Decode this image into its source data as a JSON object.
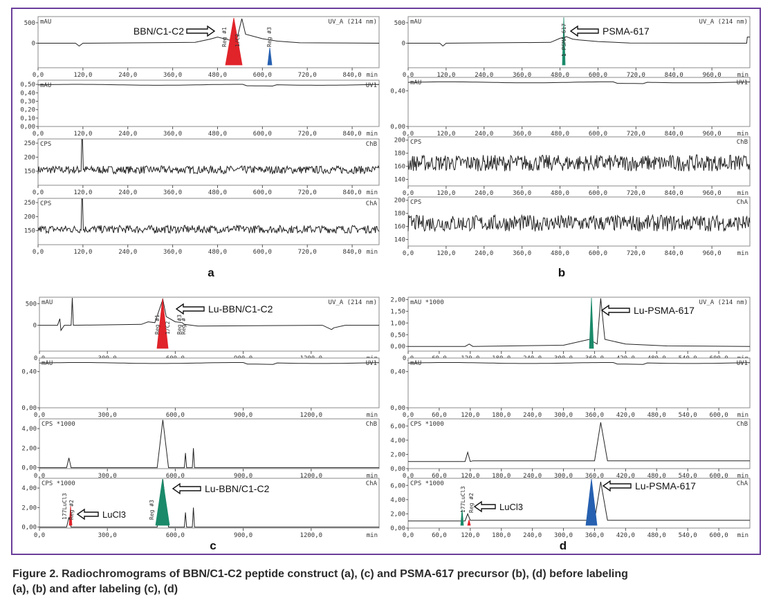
{
  "caption": {
    "line1": "Figure 2. Radiochromograms of BBN/C1-C2 peptide construct (a), (c) and PSMA-617 precursor (b), (d) before labeling",
    "line2": "(a), (b) and after labeling (c), (d)"
  },
  "colors": {
    "frame": "#6a3d9a",
    "trace": "#222222",
    "red_peak": "#e0242a",
    "blue_peak": "#2660b0",
    "green_peak": "#1a8a6a"
  },
  "chart_data": [
    {
      "panel": "a",
      "type": "line",
      "xlim": [
        0,
        912
      ],
      "xticks": [
        "0,0",
        "120,0",
        "240,0",
        "360,0",
        "480,0",
        "600,0",
        "720,0",
        "840,0"
      ],
      "xunit": "min",
      "subplots": [
        {
          "ylabel": "mAU",
          "right_label": "UV_A (214 nm)",
          "ylim": [
            -600,
            650
          ],
          "yticks": [
            "500",
            "0"
          ],
          "trace_points": [
            [
              0,
              0
            ],
            [
              100,
              0
            ],
            [
              110,
              -70
            ],
            [
              120,
              0
            ],
            [
              420,
              20
            ],
            [
              460,
              100
            ],
            [
              480,
              150
            ],
            [
              510,
              80
            ],
            [
              530,
              30
            ],
            [
              545,
              600
            ],
            [
              555,
              220
            ],
            [
              600,
              110
            ],
            [
              640,
              50
            ],
            [
              700,
              10
            ],
            [
              912,
              0
            ]
          ],
          "annotations": [
            "BBN/C1-C2",
            "Reg #1",
            "1/C2",
            "Reg #3"
          ]
        },
        {
          "ylabel": "mAU",
          "right_label": "UV1",
          "ylim": [
            0,
            0.55
          ],
          "yticks": [
            "0,50",
            "0,40",
            "0,30",
            "0,20",
            "0,10",
            "0,00"
          ]
        },
        {
          "ylabel": "CPS",
          "right_label": "ChB",
          "ylim": [
            100,
            265
          ],
          "yticks": [
            "250",
            "200",
            "150"
          ],
          "baseline": 155,
          "spike_at": 117,
          "spike_value": 265
        },
        {
          "ylabel": "CPS",
          "right_label": "ChA",
          "ylim": [
            100,
            265
          ],
          "yticks": [
            "250",
            "200",
            "150"
          ],
          "baseline": 155,
          "spike_at": 117,
          "spike_value": 265
        }
      ]
    },
    {
      "panel": "b",
      "type": "line",
      "xlim": [
        0,
        1080
      ],
      "xticks": [
        "0,0",
        "120,0",
        "240,0",
        "360,0",
        "480,0",
        "600,0",
        "720,0",
        "840,0",
        "960,0"
      ],
      "xunit": "min",
      "subplots": [
        {
          "ylabel": "mAU",
          "right_label": "UV_A (214 nm)",
          "ylim": [
            -600,
            650
          ],
          "yticks": [
            "500",
            "0"
          ],
          "trace_points": [
            [
              0,
              0
            ],
            [
              100,
              0
            ],
            [
              110,
              -70
            ],
            [
              120,
              0
            ],
            [
              450,
              20
            ],
            [
              480,
              120
            ],
            [
              500,
              160
            ],
            [
              520,
              100
            ],
            [
              540,
              80
            ],
            [
              600,
              40
            ],
            [
              700,
              5
            ],
            [
              1070,
              0
            ],
            [
              1072,
              150
            ],
            [
              1080,
              150
            ]
          ],
          "annotations": [
            "PSMA-617",
            "1 PSMA-617"
          ]
        },
        {
          "ylabel": "mAU",
          "right_label": "UV1",
          "ylim": [
            0,
            0.55
          ],
          "yticks": [
            "0,40",
            "0,00"
          ]
        },
        {
          "ylabel": "CPS",
          "right_label": "ChB",
          "ylim": [
            130,
            205
          ],
          "yticks": [
            "200",
            "180",
            "160",
            "140"
          ],
          "baseline": 165,
          "noise": 25
        },
        {
          "ylabel": "CPS",
          "right_label": "ChA",
          "ylim": [
            130,
            205
          ],
          "yticks": [
            "200",
            "180",
            "160",
            "140"
          ],
          "baseline": 165,
          "noise": 25
        }
      ]
    },
    {
      "panel": "c",
      "type": "line",
      "xlim": [
        0,
        1500
      ],
      "xticks": [
        "0,0",
        "300,0",
        "600,0",
        "900,0",
        "1200,0"
      ],
      "xunit": "min",
      "subplots": [
        {
          "ylabel": "mAU",
          "right_label": "UV_A (214 nm)",
          "ylim": [
            -600,
            650
          ],
          "yticks": [
            "500",
            "0"
          ],
          "trace_points": [
            [
              0,
              0
            ],
            [
              80,
              0
            ],
            [
              90,
              150
            ],
            [
              95,
              -120
            ],
            [
              110,
              0
            ],
            [
              140,
              0
            ],
            [
              145,
              980
            ],
            [
              150,
              0
            ],
            [
              450,
              20
            ],
            [
              480,
              80
            ],
            [
              510,
              60
            ],
            [
              545,
              600
            ],
            [
              560,
              200
            ],
            [
              600,
              80
            ],
            [
              630,
              60
            ],
            [
              640,
              20
            ],
            [
              700,
              -20
            ],
            [
              1250,
              0
            ],
            [
              1290,
              -100
            ],
            [
              1300,
              -60
            ],
            [
              1350,
              0
            ],
            [
              1500,
              0
            ]
          ],
          "annotations": [
            "Lu-BBN/C1-C2",
            "Reg #1",
            "1/C2",
            "Reg #3",
            "Reg #"
          ]
        },
        {
          "ylabel": "mAU",
          "right_label": "UV1",
          "ylim": [
            0,
            0.55
          ],
          "yticks": [
            "0,40",
            "0,00"
          ]
        },
        {
          "ylabel": "CPS *1000",
          "right_label": "ChB",
          "ylim": [
            -0.1,
            5
          ],
          "yticks": [
            "4,00",
            "2,00",
            "0,00"
          ],
          "trace_points": [
            [
              0,
              0
            ],
            [
              120,
              0
            ],
            [
              130,
              1.0
            ],
            [
              140,
              0
            ],
            [
              520,
              0
            ],
            [
              545,
              4.9
            ],
            [
              570,
              0
            ],
            [
              640,
              0
            ],
            [
              645,
              1.5
            ],
            [
              650,
              0
            ],
            [
              675,
              0
            ],
            [
              680,
              2.0
            ],
            [
              685,
              0
            ],
            [
              1500,
              0
            ]
          ]
        },
        {
          "ylabel": "CPS *1000",
          "right_label": "ChA",
          "ylim": [
            -0.1,
            5
          ],
          "yticks": [
            "4,00",
            "2,00",
            "0,00"
          ],
          "trace_points": [
            [
              0,
              0
            ],
            [
              120,
              0
            ],
            [
              130,
              1.0
            ],
            [
              140,
              0
            ],
            [
              520,
              0
            ],
            [
              545,
              4.9
            ],
            [
              570,
              0
            ],
            [
              640,
              0
            ],
            [
              645,
              1.5
            ],
            [
              650,
              0
            ],
            [
              675,
              0
            ],
            [
              680,
              2.0
            ],
            [
              685,
              0
            ],
            [
              1500,
              0
            ]
          ],
          "annotations": [
            "Lu-BBN/C1-C2",
            "LuCl3",
            "Reg #3",
            "177LuCl3",
            "Reg #2"
          ]
        }
      ]
    },
    {
      "panel": "d",
      "type": "line",
      "xlim": [
        0,
        660
      ],
      "xticks": [
        "0,0",
        "60,0",
        "120,0",
        "180,0",
        "240,0",
        "300,0",
        "360,0",
        "420,0",
        "480,0",
        "540,0",
        "600,0"
      ],
      "xunit": "min",
      "subplots": [
        {
          "ylabel": "mAU *1000",
          "right_label": "UV_A (214 nm)",
          "ylim": [
            -0.2,
            2.1
          ],
          "yticks": [
            "2,00",
            "1,50",
            "1,00",
            "0,50",
            "0,00"
          ],
          "trace_points": [
            [
              0,
              0
            ],
            [
              110,
              0
            ],
            [
              118,
              0.1
            ],
            [
              125,
              0
            ],
            [
              300,
              0.05
            ],
            [
              350,
              0.3
            ],
            [
              365,
              0.1
            ],
            [
              372,
              2.05
            ],
            [
              380,
              0.3
            ],
            [
              420,
              0.1
            ],
            [
              500,
              0.02
            ],
            [
              660,
              0
            ]
          ],
          "annotations": [
            "Lu-PSMA-617"
          ]
        },
        {
          "ylabel": "mAU",
          "right_label": "UV1",
          "ylim": [
            0,
            0.55
          ],
          "yticks": [
            "0,40",
            "0,00"
          ]
        },
        {
          "ylabel": "CPS *1000",
          "right_label": "ChB",
          "ylim": [
            0,
            7
          ],
          "yticks": [
            "6,00",
            "4,00",
            "2,00",
            "0,00"
          ],
          "trace_points": [
            [
              0,
              1
            ],
            [
              110,
              1
            ],
            [
              115,
              2.3
            ],
            [
              120,
              1
            ],
            [
              125,
              1.1
            ],
            [
              360,
              1.1
            ],
            [
              372,
              6.5
            ],
            [
              385,
              1.1
            ],
            [
              660,
              1.1
            ]
          ]
        },
        {
          "ylabel": "CPS *1000",
          "right_label": "ChA",
          "ylim": [
            0,
            7
          ],
          "yticks": [
            "6,00",
            "4,00",
            "2,00",
            "0,00"
          ],
          "trace_points": [
            [
              0,
              1
            ],
            [
              110,
              1
            ],
            [
              115,
              2.0
            ],
            [
              120,
              1.1
            ],
            [
              125,
              1.1
            ],
            [
              360,
              1.1
            ],
            [
              372,
              6.5
            ],
            [
              385,
              1.1
            ],
            [
              660,
              1.1
            ]
          ],
          "annotations": [
            "Lu-PSMA-617",
            "LuCl3",
            "177LuCl3",
            "Reg #2"
          ]
        }
      ]
    }
  ],
  "panel_letters": [
    "a",
    "b",
    "c",
    "d"
  ]
}
